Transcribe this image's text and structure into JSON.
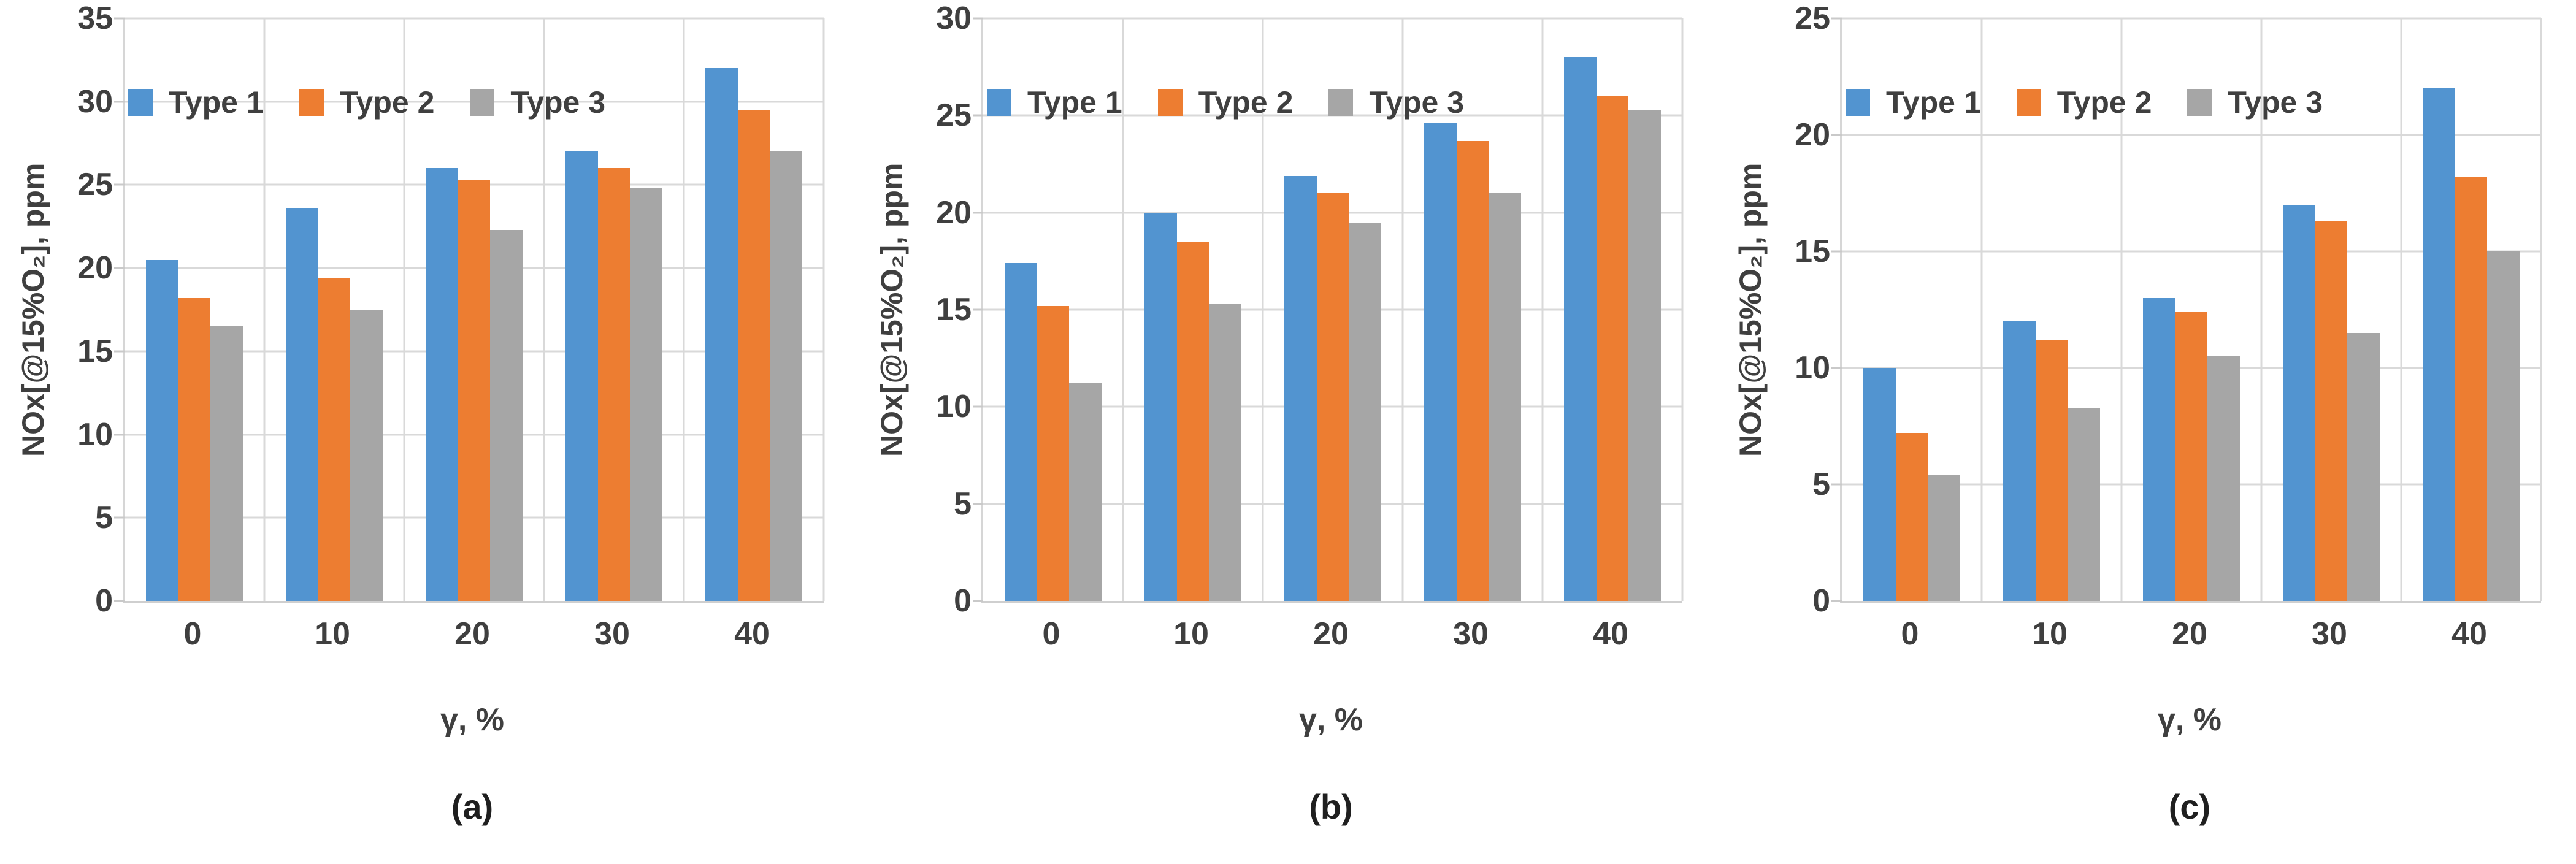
{
  "page": {
    "background": "#ffffff"
  },
  "colors": {
    "type1": "#5294d0",
    "type2": "#ed7d31",
    "type3": "#a6a6a6",
    "gridline": "#d9d9d9",
    "axis_line": "#cfcfcf",
    "text": "#3f3f3f"
  },
  "legend": {
    "labels": [
      "Type 1",
      "Type 2",
      "Type 3"
    ]
  },
  "chart_data": [
    {
      "id": "a",
      "type": "bar",
      "caption": "(a)",
      "xlabel": "γ, %",
      "ylabel": "NOx[@15%O₂], ppm",
      "categories": [
        "0",
        "10",
        "20",
        "30",
        "40"
      ],
      "series": [
        {
          "name": "Type 1",
          "color_key": "type1",
          "values": [
            20.5,
            23.6,
            26.0,
            27.0,
            32.0
          ]
        },
        {
          "name": "Type 2",
          "color_key": "type2",
          "values": [
            18.2,
            19.4,
            25.3,
            26.0,
            29.5
          ]
        },
        {
          "name": "Type 3",
          "color_key": "type3",
          "values": [
            16.5,
            17.5,
            22.3,
            24.8,
            27.0
          ]
        }
      ],
      "ylim": [
        0,
        35
      ],
      "yticks": [
        0,
        5,
        10,
        15,
        20,
        25,
        30,
        35
      ],
      "grid": true,
      "legend_position": "top-inside"
    },
    {
      "id": "b",
      "type": "bar",
      "caption": "(b)",
      "xlabel": "γ, %",
      "ylabel": "NOx[@15%O₂], ppm",
      "categories": [
        "0",
        "10",
        "20",
        "30",
        "40"
      ],
      "series": [
        {
          "name": "Type 1",
          "color_key": "type1",
          "values": [
            17.4,
            20.0,
            21.9,
            24.6,
            28.0
          ]
        },
        {
          "name": "Type 2",
          "color_key": "type2",
          "values": [
            15.2,
            18.5,
            21.0,
            23.7,
            26.0
          ]
        },
        {
          "name": "Type 3",
          "color_key": "type3",
          "values": [
            11.2,
            15.3,
            19.5,
            21.0,
            25.3
          ]
        }
      ],
      "ylim": [
        0,
        30
      ],
      "yticks": [
        0,
        5,
        10,
        15,
        20,
        25,
        30
      ],
      "grid": true,
      "legend_position": "top-inside"
    },
    {
      "id": "c",
      "type": "bar",
      "caption": "(c)",
      "xlabel": "γ, %",
      "ylabel": "NOx[@15%O₂], ppm",
      "categories": [
        "0",
        "10",
        "20",
        "30",
        "40"
      ],
      "series": [
        {
          "name": "Type 1",
          "color_key": "type1",
          "values": [
            10.0,
            12.0,
            13.0,
            17.0,
            22.0
          ]
        },
        {
          "name": "Type 2",
          "color_key": "type2",
          "values": [
            7.2,
            11.2,
            12.4,
            16.3,
            18.2
          ]
        },
        {
          "name": "Type 3",
          "color_key": "type3",
          "values": [
            5.4,
            8.3,
            10.5,
            11.5,
            15.0
          ]
        }
      ],
      "ylim": [
        0,
        25
      ],
      "yticks": [
        0,
        5,
        10,
        15,
        20,
        25
      ],
      "grid": true,
      "legend_position": "top-inside"
    }
  ]
}
